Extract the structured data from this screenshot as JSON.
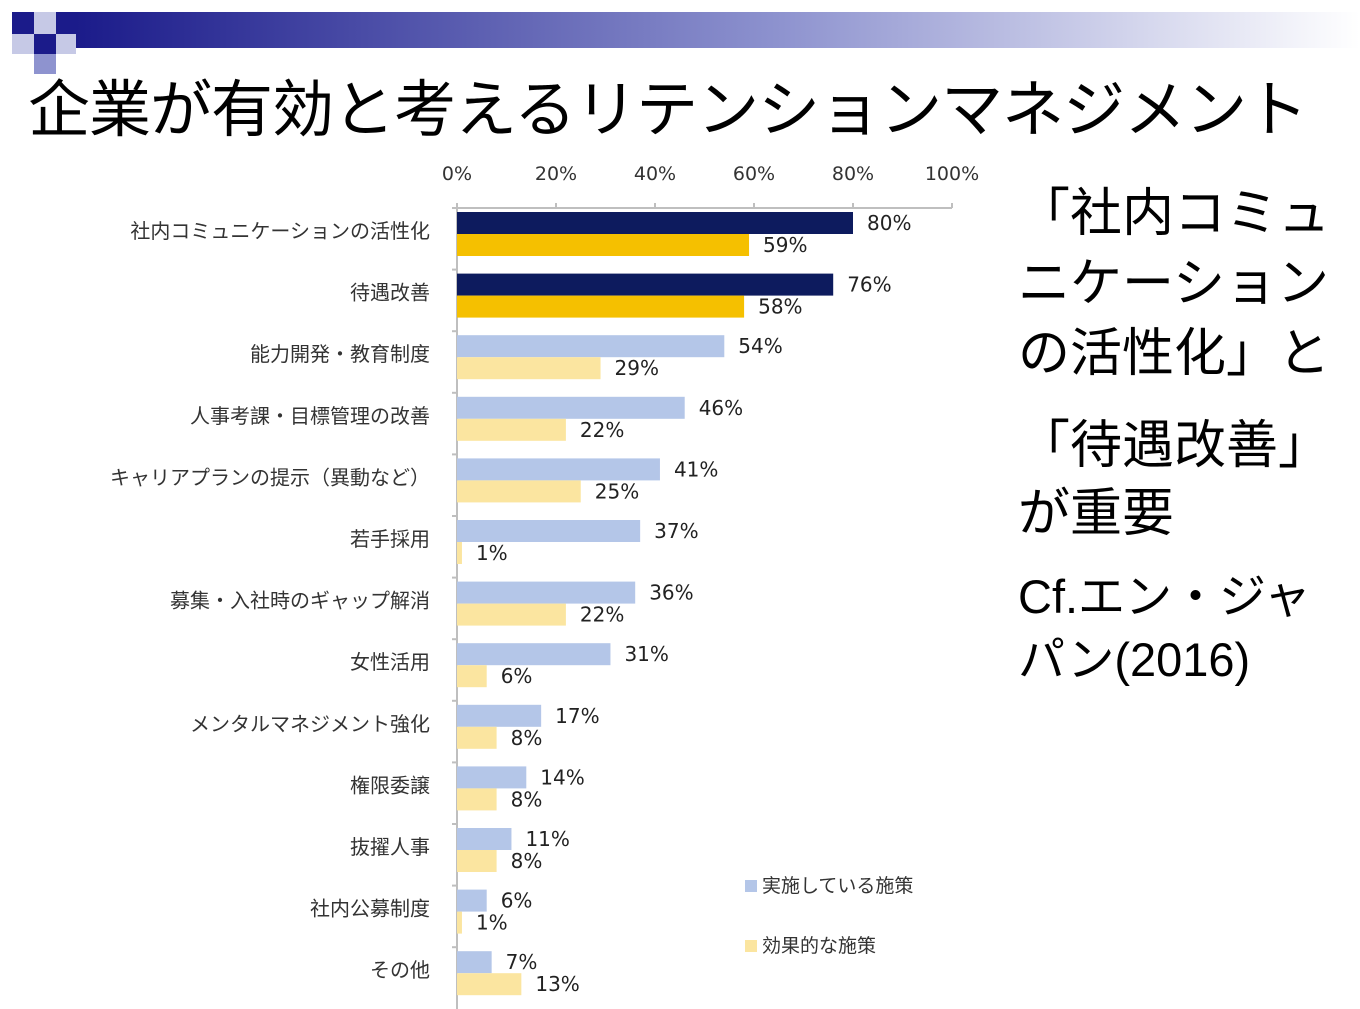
{
  "title": "企業が有効と考えるリテンションマネジメント",
  "side_note": {
    "lines": [
      "「社内コミュ",
      "ニケーション",
      "の活性化」と",
      "「待遇改善」",
      "が重要"
    ],
    "reference_lines": [
      "Cf.エン・ジャ",
      "パン(2016)"
    ]
  },
  "colors": {
    "deco_navy": "#1b1b8a",
    "deco_light": "#c6c9e6",
    "implemented": "#b4c6e8",
    "effective": "#fbe5a0",
    "implemented_highlight": "#0d1b5e",
    "effective_highlight": "#f5c000",
    "axis": "#bfbfbf",
    "label_text": "#333333"
  },
  "chart_data": {
    "type": "bar",
    "orientation": "horizontal",
    "title": "",
    "xlabel": "",
    "ylabel": "",
    "xlim": [
      0,
      100
    ],
    "x_ticks": [
      "0%",
      "20%",
      "40%",
      "60%",
      "80%",
      "100%"
    ],
    "categories": [
      "社内コミュニケーションの活性化",
      "待遇改善",
      "能力開発・教育制度",
      "人事考課・目標管理の改善",
      "キャリアプランの提示（異動など）",
      "若手採用",
      "募集・入社時のギャップ解消",
      "女性活用",
      "メンタルマネジメント強化",
      "権限委譲",
      "抜擢人事",
      "社内公募制度",
      "その他"
    ],
    "series": [
      {
        "name": "実施している施策",
        "values": [
          80,
          76,
          54,
          46,
          41,
          37,
          36,
          31,
          17,
          14,
          11,
          6,
          7
        ],
        "labels": [
          "80%",
          "76%",
          "54%",
          "46%",
          "41%",
          "37%",
          "36%",
          "31%",
          "17%",
          "14%",
          "11%",
          "6%",
          "7%"
        ]
      },
      {
        "name": "効果的な施策",
        "values": [
          59,
          58,
          29,
          22,
          25,
          1,
          22,
          6,
          8,
          8,
          8,
          1,
          13
        ],
        "labels": [
          "59%",
          "58%",
          "29%",
          "22%",
          "25%",
          "1%",
          "22%",
          "6%",
          "8%",
          "8%",
          "8%",
          "1%",
          "13%"
        ]
      }
    ],
    "highlighted_categories": [
      0,
      1
    ],
    "legend_position": "bottom-right"
  }
}
